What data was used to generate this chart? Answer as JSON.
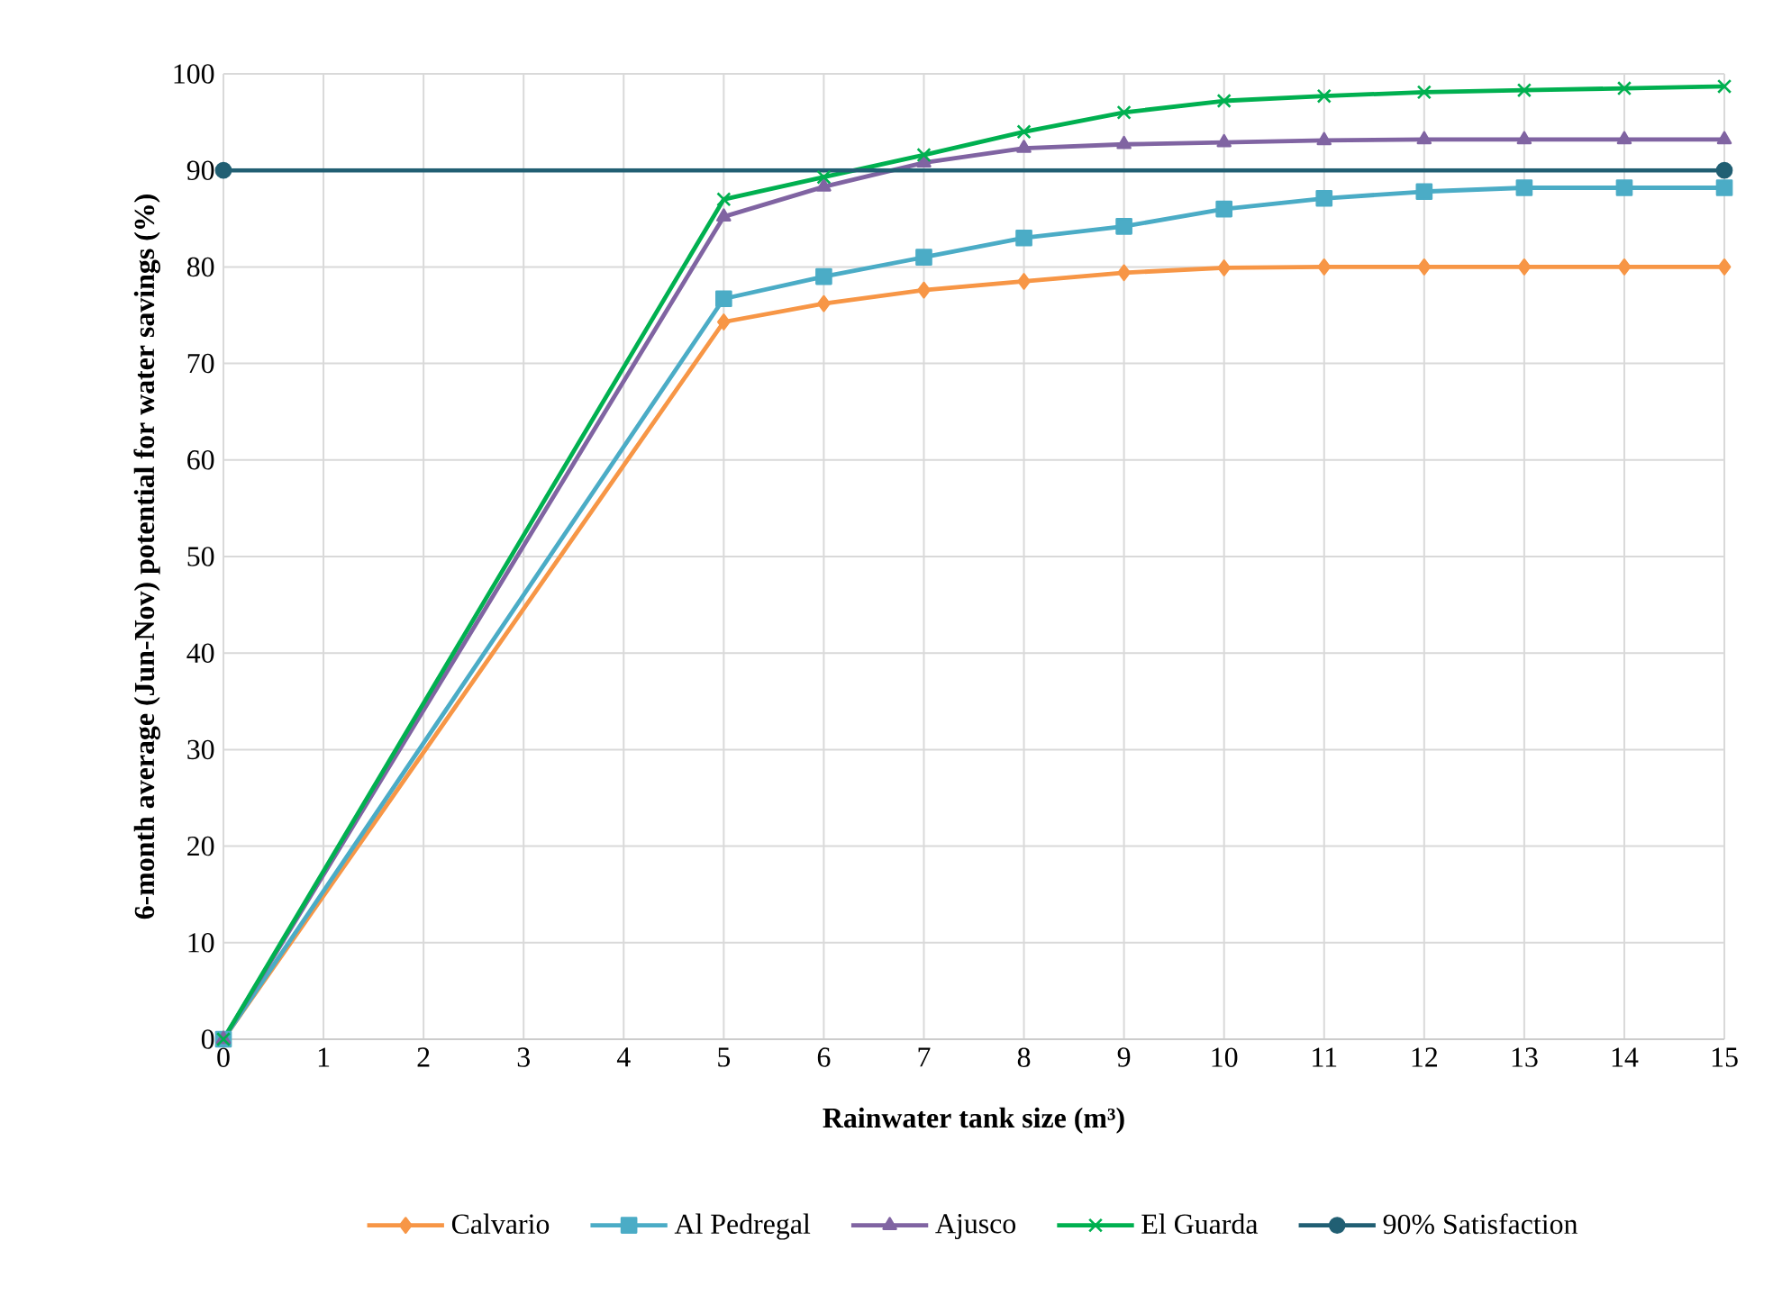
{
  "chart_data": {
    "type": "line",
    "xlabel": "Rainwater tank size (m³)",
    "ylabel": "6-month average (Jun-Nov) potential for water savings (%)",
    "x": [
      0,
      5,
      6,
      7,
      8,
      9,
      10,
      11,
      12,
      13,
      14,
      15
    ],
    "xlim": [
      0,
      15
    ],
    "ylim": [
      0,
      100
    ],
    "xticks": [
      0,
      1,
      2,
      3,
      4,
      5,
      6,
      7,
      8,
      9,
      10,
      11,
      12,
      13,
      14,
      15
    ],
    "yticks": [
      0,
      10,
      20,
      30,
      40,
      50,
      60,
      70,
      80,
      90,
      100
    ],
    "grid": true,
    "legend": "bottom",
    "line_style": "solid",
    "series": [
      {
        "name": "Calvario",
        "color": "#f79646",
        "marker": "diamond",
        "values": [
          0,
          74.3,
          76.2,
          77.6,
          78.5,
          79.4,
          79.9,
          80,
          80,
          80,
          80,
          80
        ]
      },
      {
        "name": "Al Pedregal",
        "color": "#4bacc6",
        "marker": "square",
        "values": [
          0,
          76.7,
          79,
          81,
          83,
          84.2,
          86,
          87.1,
          87.8,
          88.2,
          88.2,
          88.2
        ]
      },
      {
        "name": "Ajusco",
        "color": "#8064a2",
        "marker": "triangle",
        "values": [
          0,
          85.2,
          88.3,
          90.8,
          92.3,
          92.7,
          92.9,
          93.1,
          93.2,
          93.2,
          93.2,
          93.2
        ]
      },
      {
        "name": "El Guarda",
        "color": "#00b050",
        "marker": "cross",
        "values": [
          0,
          87,
          89.3,
          91.6,
          94,
          96,
          97.2,
          97.7,
          98.1,
          98.3,
          98.5,
          98.7
        ]
      },
      {
        "name": "90% Satisfaction",
        "color": "#215f73",
        "marker": "circle",
        "x": [
          0,
          15
        ],
        "values": [
          90,
          90
        ]
      }
    ]
  }
}
